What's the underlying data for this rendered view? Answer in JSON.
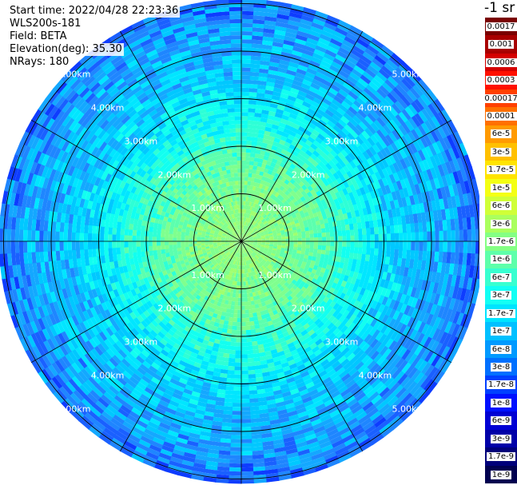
{
  "info": {
    "start_time": "Start time: 2022/04/28 22:23:36",
    "instrument": "WLS200s-181",
    "field": "Field: BETA",
    "elevation": "Elevation(deg): 35.30",
    "nrays": "NRays: 180"
  },
  "colorbar": {
    "unit_label": "-1 sr",
    "segments": [
      {
        "label": "0.0017",
        "color": "#7a0000"
      },
      {
        "label": "0.001",
        "color": "#a80000"
      },
      {
        "label": "0.0006",
        "color": "#d40000"
      },
      {
        "label": "0.0003",
        "color": "#ff1000"
      },
      {
        "label": "0.00017",
        "color": "#ff4000"
      },
      {
        "label": "0.0001",
        "color": "#ff7000"
      },
      {
        "label": "6e-5",
        "color": "#ff9a00"
      },
      {
        "label": "3e-5",
        "color": "#ffc000"
      },
      {
        "label": "1.7e-5",
        "color": "#ffe400"
      },
      {
        "label": "1e-5",
        "color": "#f4ff14"
      },
      {
        "label": "6e-6",
        "color": "#d0ff38"
      },
      {
        "label": "3e-6",
        "color": "#aaff5e"
      },
      {
        "label": "1.7e-6",
        "color": "#84ff84"
      },
      {
        "label": "1e-6",
        "color": "#5effaa"
      },
      {
        "label": "6e-7",
        "color": "#38ffd0"
      },
      {
        "label": "3e-7",
        "color": "#12fff4"
      },
      {
        "label": "1.7e-7",
        "color": "#00e4ff"
      },
      {
        "label": "1e-7",
        "color": "#00c0ff"
      },
      {
        "label": "6e-8",
        "color": "#009aff"
      },
      {
        "label": "3e-8",
        "color": "#0070ff"
      },
      {
        "label": "1.7e-8",
        "color": "#0040ff"
      },
      {
        "label": "1e-8",
        "color": "#0010ff"
      },
      {
        "label": "6e-9",
        "color": "#0000d4"
      },
      {
        "label": "3e-9",
        "color": "#0000a8"
      },
      {
        "label": "1.7e-9",
        "color": "#00007a"
      },
      {
        "label": "1e-9",
        "color": "#000050"
      }
    ]
  },
  "chart_data": {
    "type": "heatmap",
    "projection": "polar (PPI scan)",
    "field": "BETA",
    "range_rings_km": [
      1,
      2,
      3,
      4,
      5
    ],
    "range_ring_labels": [
      "1.00km",
      "2.00km",
      "3.00km",
      "4.00km",
      "5.00km"
    ],
    "max_range_km": 5.1,
    "azimuth_spoke_spacing_deg": 30,
    "nrays": 180,
    "scale": "log",
    "value_range": [
      1e-09,
      0.0017
    ],
    "radial_profile": [
      {
        "range_km": 0.5,
        "value": 1.7e-06
      },
      {
        "range_km": 1.5,
        "value": 1e-06
      },
      {
        "range_km": 2.5,
        "value": 3e-07
      },
      {
        "range_km": 3.5,
        "value": 1e-07
      },
      {
        "range_km": 4.5,
        "value": 6e-08
      },
      {
        "range_km": 5.0,
        "value": 3e-08
      }
    ]
  }
}
